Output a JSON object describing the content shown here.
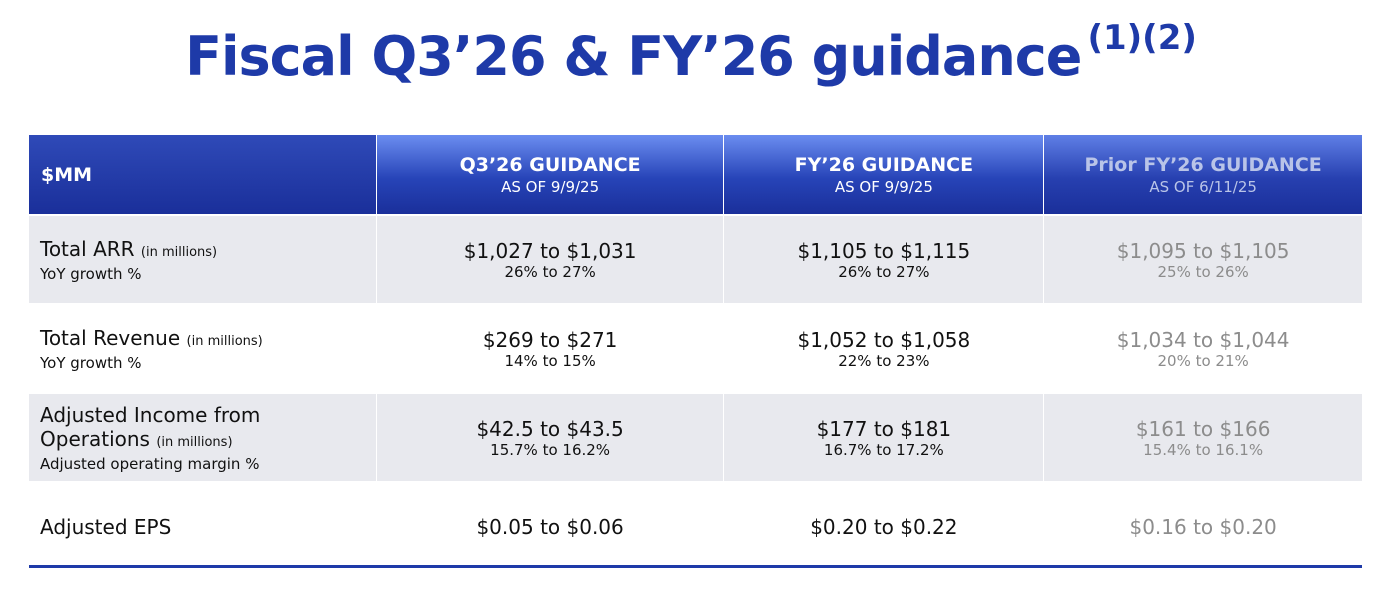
{
  "title": {
    "text": "Fiscal Q3’26 & FY’26 guidance",
    "footnotes": "(1)(2)"
  },
  "colors": {
    "brand_blue": "#1e3aa8",
    "row_shade": "#e8e9ee",
    "muted_text": "#8c8c8c"
  },
  "table": {
    "headers": [
      {
        "main": "$MM",
        "sub": ""
      },
      {
        "main": "Q3’26 GUIDANCE",
        "sub": "AS OF 9/9/25"
      },
      {
        "main": "FY’26 GUIDANCE",
        "sub": "AS OF 9/9/25"
      },
      {
        "main": "Prior FY’26 GUIDANCE",
        "sub": "AS OF 6/11/25"
      }
    ],
    "rows": [
      {
        "label": "Total ARR",
        "unit": "(in millions)",
        "sublabel": "YoY growth %",
        "q3": {
          "value": "$1,027 to $1,031",
          "sub": "26% to 27%"
        },
        "fy": {
          "value": "$1,105 to $1,115",
          "sub": "26% to 27%"
        },
        "prior": {
          "value": "$1,095 to $1,105",
          "sub": "25% to 26%"
        }
      },
      {
        "label": "Total Revenue",
        "unit": "(in millions)",
        "sublabel": "YoY growth %",
        "q3": {
          "value": "$269 to $271",
          "sub": "14% to 15%"
        },
        "fy": {
          "value": "$1,052 to $1,058",
          "sub": "22% to 23%"
        },
        "prior": {
          "value": "$1,034 to $1,044",
          "sub": "20% to 21%"
        }
      },
      {
        "label_line1": "Adjusted Income from",
        "label_line2": "Operations",
        "unit": "(in millions)",
        "sublabel": "Adjusted operating margin %",
        "q3": {
          "value": "$42.5 to $43.5",
          "sub": "15.7% to 16.2%"
        },
        "fy": {
          "value": "$177 to $181",
          "sub": "16.7% to 17.2%"
        },
        "prior": {
          "value": "$161 to $166",
          "sub": "15.4% to 16.1%"
        }
      },
      {
        "label": "Adjusted EPS",
        "q3": {
          "value": "$0.05 to $0.06"
        },
        "fy": {
          "value": "$0.20 to $0.22"
        },
        "prior": {
          "value": "$0.16 to $0.20"
        }
      }
    ]
  }
}
